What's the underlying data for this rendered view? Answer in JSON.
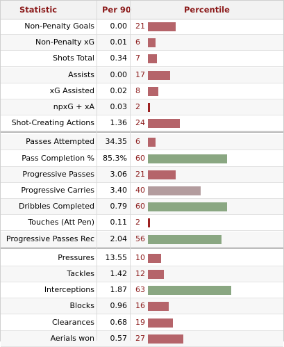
{
  "header": {
    "statistic": "Statistic",
    "per90": "Per 90",
    "percentile": "Percentile"
  },
  "colors": {
    "low": "#b5646a",
    "mid": "#b39c9e",
    "high": "#8aa782",
    "very_low": "#9c2020"
  },
  "rows": [
    {
      "label": "Non-Penalty Goals",
      "per90": "0.00",
      "pct": "21",
      "pctval": 21
    },
    {
      "label": "Non-Penalty xG",
      "per90": "0.01",
      "pct": "6",
      "pctval": 6
    },
    {
      "label": "Shots Total",
      "per90": "0.34",
      "pct": "7",
      "pctval": 7
    },
    {
      "label": "Assists",
      "per90": "0.00",
      "pct": "17",
      "pctval": 17
    },
    {
      "label": "xG Assisted",
      "per90": "0.02",
      "pct": "8",
      "pctval": 8
    },
    {
      "label": "npxG + xA",
      "per90": "0.03",
      "pct": "2",
      "pctval": 2
    },
    {
      "label": "Shot-Creating Actions",
      "per90": "1.36",
      "pct": "24",
      "pctval": 24
    },
    {
      "label": "Passes Attempted",
      "per90": "34.35",
      "pct": "6",
      "pctval": 6
    },
    {
      "label": "Pass Completion %",
      "per90": "85.3%",
      "pct": "60",
      "pctval": 60
    },
    {
      "label": "Progressive Passes",
      "per90": "3.06",
      "pct": "21",
      "pctval": 21
    },
    {
      "label": "Progressive Carries",
      "per90": "3.40",
      "pct": "40",
      "pctval": 40
    },
    {
      "label": "Dribbles Completed",
      "per90": "0.79",
      "pct": "60",
      "pctval": 60
    },
    {
      "label": "Touches (Att Pen)",
      "per90": "0.11",
      "pct": "2",
      "pctval": 2
    },
    {
      "label": "Progressive Passes Rec",
      "per90": "2.04",
      "pct": "56",
      "pctval": 56
    },
    {
      "label": "Pressures",
      "per90": "13.55",
      "pct": "10",
      "pctval": 10
    },
    {
      "label": "Tackles",
      "per90": "1.42",
      "pct": "12",
      "pctval": 12
    },
    {
      "label": "Interceptions",
      "per90": "1.87",
      "pct": "63",
      "pctval": 63
    },
    {
      "label": "Blocks",
      "per90": "0.96",
      "pct": "16",
      "pctval": 16
    },
    {
      "label": "Clearances",
      "per90": "0.68",
      "pct": "19",
      "pctval": 19
    },
    {
      "label": "Aerials won",
      "per90": "0.57",
      "pct": "27",
      "pctval": 27
    }
  ]
}
